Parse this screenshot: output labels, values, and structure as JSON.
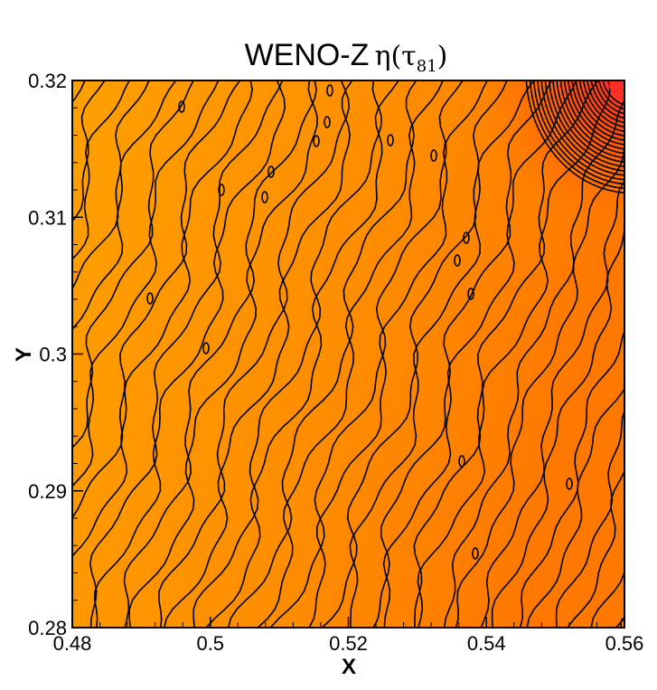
{
  "chart_data": {
    "type": "contour",
    "title": {
      "text": "WENO-Z",
      "symbol": "η",
      "paren_open": "(",
      "tau": "τ",
      "subscript": "81",
      "paren_close": ")"
    },
    "xlabel": "X",
    "ylabel": "Y",
    "xlim": [
      0.48,
      0.56
    ],
    "ylim": [
      0.28,
      0.32
    ],
    "x_ticks": [
      0.48,
      0.5,
      0.52,
      0.54,
      0.56
    ],
    "x_tick_labels": [
      "0.48",
      "0.5",
      "0.52",
      "0.54",
      "0.56"
    ],
    "y_ticks": [
      0.28,
      0.29,
      0.3,
      0.31,
      0.32
    ],
    "y_tick_labels": [
      "0.28",
      "0.29",
      "0.3",
      "0.31",
      "0.32"
    ],
    "grid": false,
    "colormap": {
      "low": "#ffa000",
      "mid": "#ff8000",
      "high": "#ff2020",
      "contour_line": "#000000"
    },
    "high_gradient_region": "top-right corner",
    "stripe_count": 20
  }
}
